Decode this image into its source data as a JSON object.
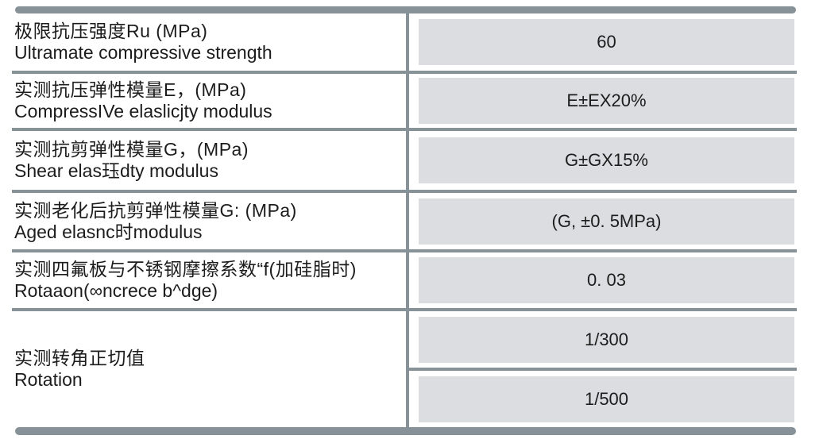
{
  "table": {
    "rows": [
      {
        "zh": "极限抗压强度Ru (MPa)",
        "en": "Ultramate compressive strength",
        "value": "60"
      },
      {
        "zh": "实测抗压弹性模量E，(MPa)",
        "en": "CompressIVe elaslicjty modulus",
        "value": "E±EX20%"
      },
      {
        "zh": "实测抗剪弹性模量G，(MPa)",
        "en": "Shear elas珏dty modulus",
        "value": "G±GX15%"
      },
      {
        "zh": "实测老化后抗剪弹性模量G: (MPa)",
        "en": "Aged elasnc时modulus",
        "value": "(G, ±0. 5MPa)"
      },
      {
        "zh": "实测四氟板与不锈钢摩擦系数“f(加硅脂时)",
        "en": "Rotaaon(∞ncrece b^dge)",
        "value": "0. 03"
      },
      {
        "zh": "实测转角正切值",
        "en": "Rotation",
        "value_top": "1/300",
        "value_bottom": "1/500"
      }
    ],
    "colors": {
      "line_gray": "#869298",
      "value_box_gray": "#dcdde0",
      "text": "#1c1c1c",
      "background": "#ffffff"
    }
  }
}
